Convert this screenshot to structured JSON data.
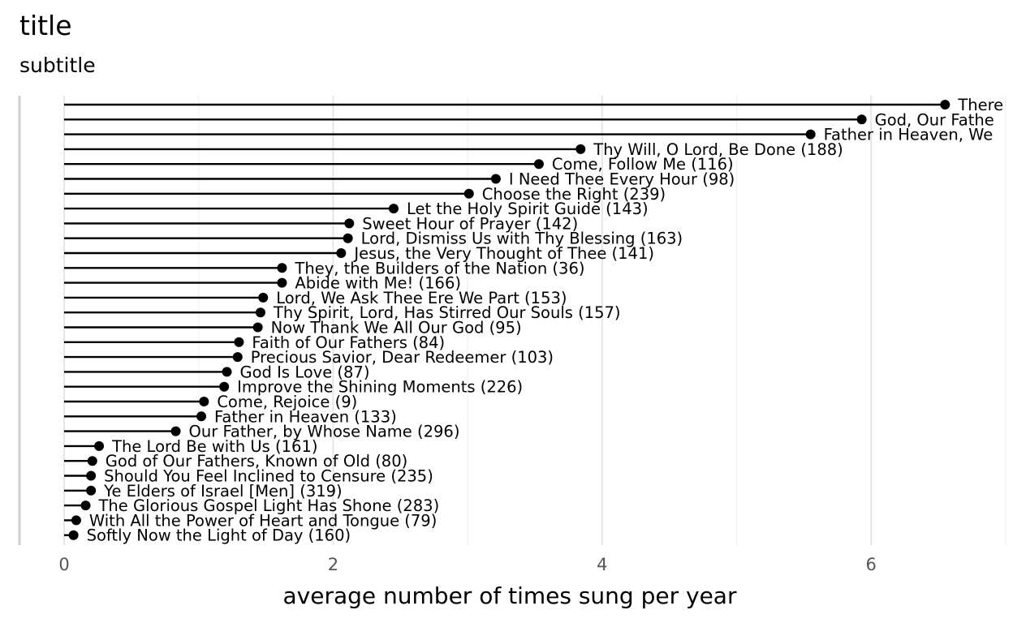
{
  "title": "title",
  "subtitle": "subtitle",
  "chart_data": {
    "type": "lollipop",
    "title": "title",
    "subtitle": "subtitle",
    "xlabel": "average number of times sung per year",
    "ylabel": "",
    "xlim": [
      0,
      7
    ],
    "xticks": [
      0,
      2,
      4,
      6
    ],
    "xtick_labels": [
      "0",
      "2",
      "4",
      "6"
    ],
    "grid": true,
    "legend": "none",
    "items": [
      {
        "label": "There",
        "value": 6.55
      },
      {
        "label": "God, Our Fathe",
        "value": 5.93
      },
      {
        "label": "Father in Heaven, We",
        "value": 5.55
      },
      {
        "label": "Thy Will, O Lord, Be Done (188)",
        "value": 3.84
      },
      {
        "label": "Come, Follow Me (116)",
        "value": 3.53
      },
      {
        "label": "I Need Thee Every Hour (98)",
        "value": 3.21
      },
      {
        "label": "Choose the Right (239)",
        "value": 3.01
      },
      {
        "label": "Let the Holy Spirit Guide (143)",
        "value": 2.45
      },
      {
        "label": "Sweet Hour of Prayer (142)",
        "value": 2.12
      },
      {
        "label": "Lord, Dismiss Us with Thy Blessing (163)",
        "value": 2.11
      },
      {
        "label": "Jesus, the Very Thought of Thee (141)",
        "value": 2.06
      },
      {
        "label": "They, the Builders of the Nation (36)",
        "value": 1.62
      },
      {
        "label": "Abide with Me! (166)",
        "value": 1.62
      },
      {
        "label": "Lord, We Ask Thee Ere We Part (153)",
        "value": 1.48
      },
      {
        "label": "Thy Spirit, Lord, Has Stirred Our Souls (157)",
        "value": 1.46
      },
      {
        "label": "Now Thank We All Our God (95)",
        "value": 1.44
      },
      {
        "label": "Faith of Our Fathers (84)",
        "value": 1.3
      },
      {
        "label": "Precious Savior, Dear Redeemer (103)",
        "value": 1.29
      },
      {
        "label": "God Is Love (87)",
        "value": 1.21
      },
      {
        "label": "Improve the Shining Moments (226)",
        "value": 1.19
      },
      {
        "label": "Come, Rejoice (9)",
        "value": 1.04
      },
      {
        "label": "Father in Heaven (133)",
        "value": 1.02
      },
      {
        "label": "Our Father, by Whose Name (296)",
        "value": 0.83
      },
      {
        "label": "The Lord Be with Us (161)",
        "value": 0.26
      },
      {
        "label": "God of Our Fathers, Known of Old (80)",
        "value": 0.21
      },
      {
        "label": "Should You Feel Inclined to Censure (235)",
        "value": 0.2
      },
      {
        "label": "Ye Elders of Israel [Men] (319)",
        "value": 0.2
      },
      {
        "label": "The Glorious Gospel Light Has Shone (283)",
        "value": 0.16
      },
      {
        "label": "With All the Power of Heart and Tongue (79)",
        "value": 0.09
      },
      {
        "label": "Softly Now the Light of Day (160)",
        "value": 0.07
      }
    ]
  }
}
